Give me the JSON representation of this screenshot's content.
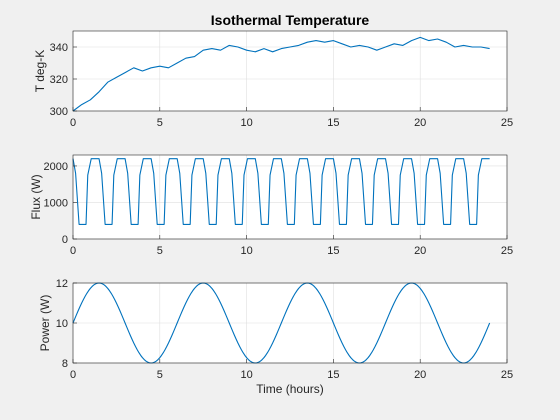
{
  "chart_data": [
    {
      "type": "line",
      "title": "Isothermal Temperature",
      "xlabel": "",
      "ylabel": "T deg-K",
      "xlim": [
        0,
        25
      ],
      "ylim": [
        300,
        350
      ],
      "xticks": [
        0,
        5,
        10,
        15,
        20,
        25
      ],
      "yticks": [
        300,
        320,
        340
      ],
      "grid": true,
      "series": [
        {
          "color": "#0072bd",
          "x": [
            0,
            0.5,
            1,
            1.5,
            2,
            2.5,
            3,
            3.5,
            4,
            4.5,
            5,
            5.5,
            6,
            6.5,
            7,
            7.5,
            8,
            8.5,
            9,
            9.5,
            10,
            10.5,
            11,
            11.5,
            12,
            12.5,
            13,
            13.5,
            14,
            14.5,
            15,
            15.5,
            16,
            16.5,
            17,
            17.5,
            18,
            18.5,
            19,
            19.5,
            20,
            20.5,
            21,
            21.5,
            22,
            22.5,
            23,
            23.5,
            24
          ],
          "y": [
            300,
            304,
            307,
            312,
            318,
            321,
            324,
            327,
            325,
            327,
            328,
            327,
            330,
            333,
            334,
            338,
            339,
            338,
            341,
            340,
            338,
            337,
            339,
            337,
            339,
            340,
            341,
            343,
            344,
            343,
            344,
            342,
            340,
            341,
            340,
            338,
            340,
            342,
            341,
            344,
            346,
            344,
            345,
            343,
            340,
            341,
            340,
            340,
            339
          ]
        }
      ]
    },
    {
      "type": "line",
      "title": "",
      "xlabel": "",
      "ylabel": "Flux (W)",
      "xlim": [
        0,
        25
      ],
      "ylim": [
        0,
        2300
      ],
      "xticks": [
        0,
        5,
        10,
        15,
        20,
        25
      ],
      "yticks": [
        0,
        1000,
        2000
      ],
      "grid": true,
      "series": [
        {
          "color": "#0072bd",
          "period": 1.5,
          "x_end": 24,
          "high": 2200,
          "low": 400,
          "note_shape": "square-like wave repeating every 1.5 h"
        }
      ]
    },
    {
      "type": "line",
      "title": "",
      "xlabel": "Time (hours)",
      "ylabel": "Power (W)",
      "xlim": [
        0,
        25
      ],
      "ylim": [
        8,
        12
      ],
      "xticks": [
        0,
        5,
        10,
        15,
        20,
        25
      ],
      "yticks": [
        8,
        10,
        12
      ],
      "grid": true,
      "series": [
        {
          "color": "#0072bd",
          "mean": 10,
          "amplitude": 2,
          "period": 6,
          "x_end": 24
        }
      ]
    }
  ]
}
